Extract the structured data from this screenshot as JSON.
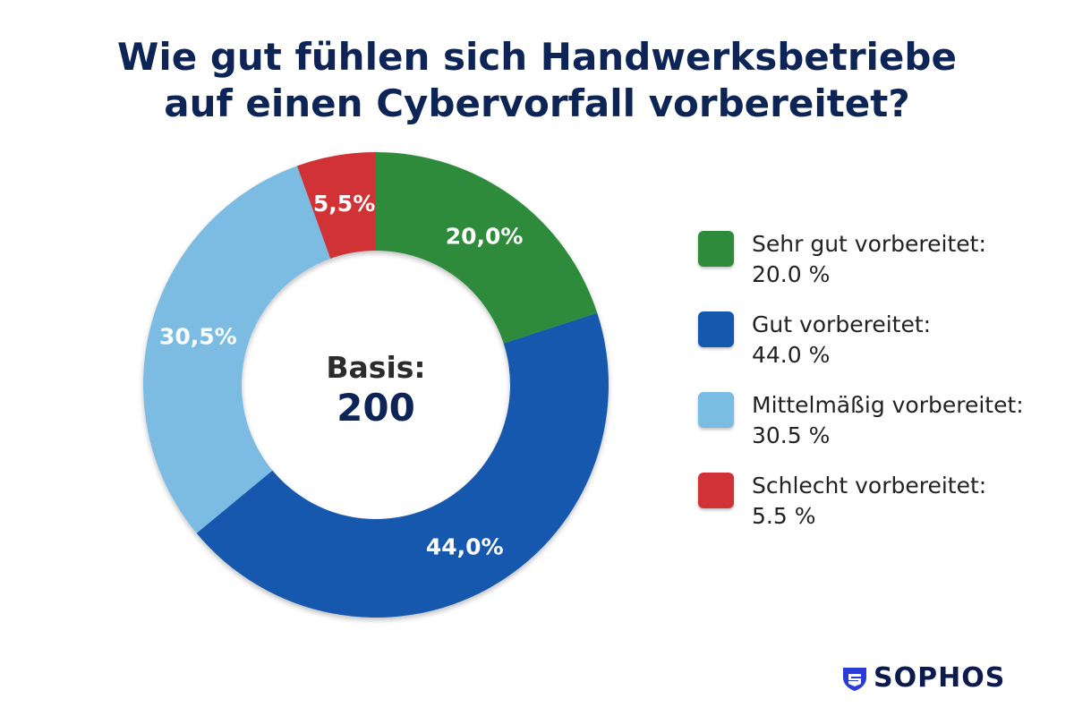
{
  "title_line1": "Wie gut fühlen sich Handwerksbetriebe",
  "title_line2": "auf einen Cybervorfall vorbereitet?",
  "center_label": "Basis:",
  "center_value": "200",
  "brand": "SOPHOS",
  "chart_data": {
    "type": "pie",
    "subtype": "donut",
    "title": "Wie gut fühlen sich Handwerksbetriebe auf einen Cybervorfall vorbereitet?",
    "base_n": 200,
    "slices": [
      {
        "name": "Sehr gut vorbereitet:",
        "value": 20.0,
        "label": "20,0%",
        "legend_value": "20.0 %",
        "color": "#2e8b3a"
      },
      {
        "name": "Gut vorbereitet:",
        "value": 44.0,
        "label": "44,0%",
        "legend_value": "44.0 %",
        "color": "#1459ad"
      },
      {
        "name": "Mittelmäßig vorbereitet:",
        "value": 30.5,
        "label": "30,5%",
        "legend_value": "30.5 %",
        "color": "#7bbce3"
      },
      {
        "name": "Schlecht vorbereitet:",
        "value": 5.5,
        "label": "5,5%",
        "legend_value": "5.5 %",
        "color": "#d03236"
      }
    ],
    "legend_position": "right"
  }
}
